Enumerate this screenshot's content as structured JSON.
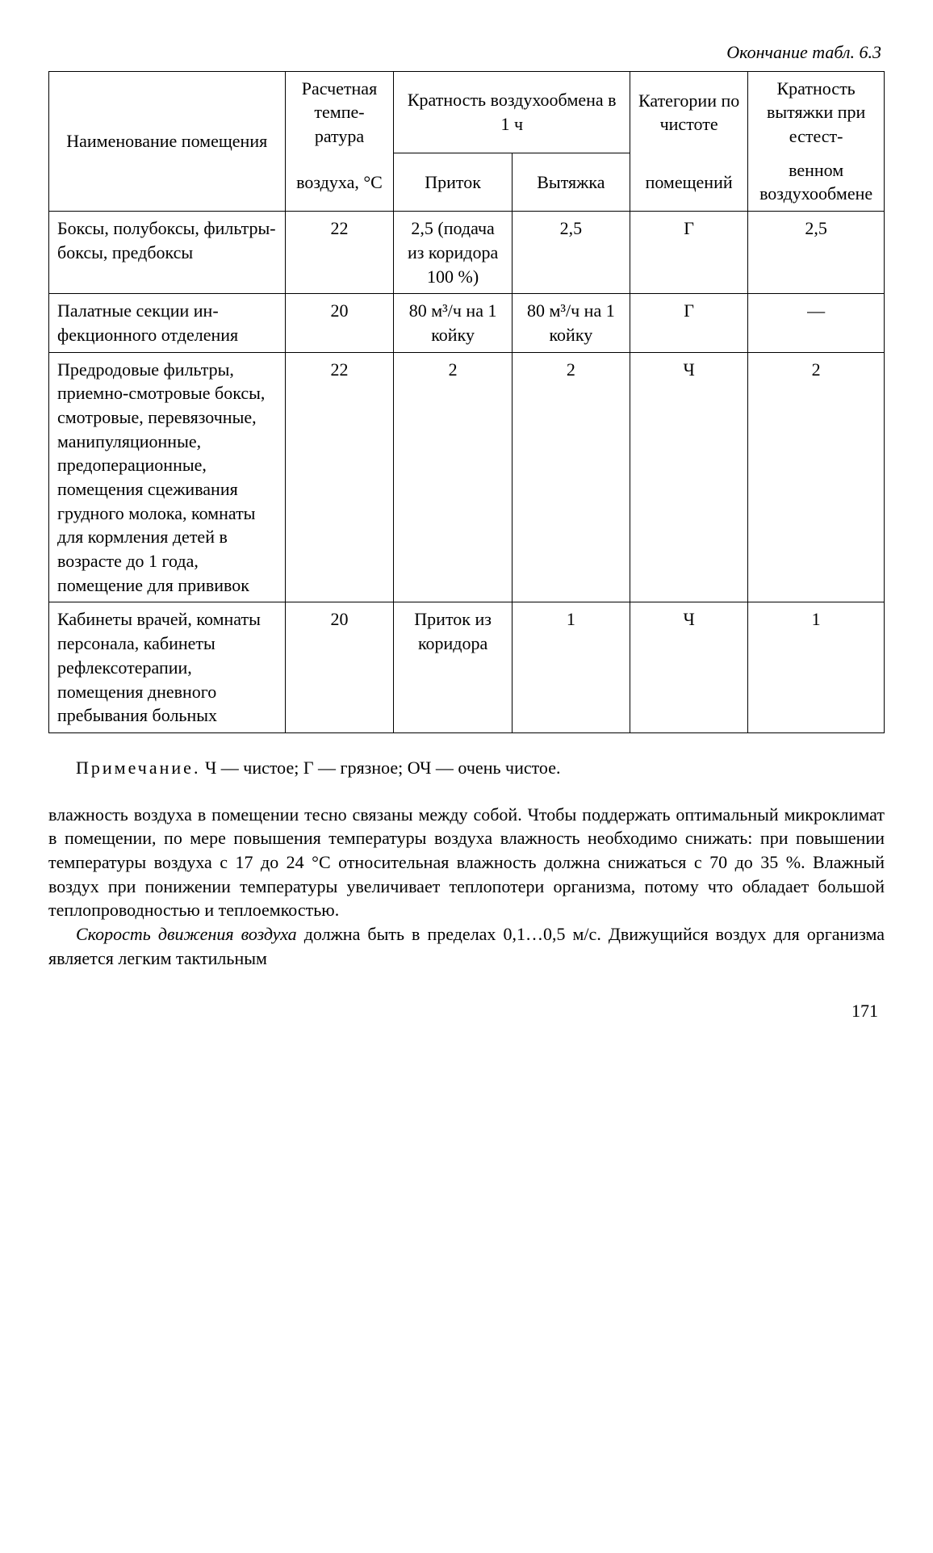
{
  "caption": "Окончание табл. 6.3",
  "head": {
    "name": "Наименование помещения",
    "temp_top": "Расчет­ная темпе­ратура",
    "temp_bottom": "воздуха, °C",
    "multi": "Кратность воздухообмена в 1 ч",
    "inflow": "Приток",
    "outflow": "Вытяжка",
    "category": "Кате­гории по чистоте",
    "category_bottom": "поме­щений",
    "natural": "Крат­ность вытяжки при естест-",
    "natural_bottom": "венном воздухо­обмене"
  },
  "rows": [
    {
      "name": "Боксы, полубоксы, фильтры-боксы, предбоксы",
      "temp": "22",
      "inflow": "2,5 (подача из кори­дора 100 %)",
      "outflow": "2,5",
      "cat": "Г",
      "nat": "2,5"
    },
    {
      "name": "Палатные секции ин­фекционного отде­ления",
      "temp": "20",
      "inflow": "80 м³/ч на 1 койку",
      "outflow": "80 м³/ч на 1 койку",
      "cat": "Г",
      "nat": "—"
    },
    {
      "name": "Предродовые фильт­ры, приемно-смот­ровые боксы, смот­ровые, перевязочные, манипуляционные, предоперационные, помещения сцежива­ния грудного молока, комнаты для кормле­ния детей в возрасте до 1 года, помещение для прививок",
      "temp": "22",
      "inflow": "2",
      "outflow": "2",
      "cat": "Ч",
      "nat": "2"
    },
    {
      "name": "Кабинеты врачей, комнаты персонала, кабинеты рефлексо­терапии, помещения дневного пребывания больных",
      "temp": "20",
      "inflow": "Приток из кори­дора",
      "outflow": "1",
      "cat": "Ч",
      "nat": "1"
    }
  ],
  "note_label": "Примечание.",
  "note_text": " Ч — чистое; Г — грязное; ОЧ — очень чистое.",
  "para1": "влажность воздуха в помещении тесно связаны между собой. Чтобы поддержать оптимальный микроклимат в помещении, по мере по­вышения температуры воздуха влажность необходимо снижать: при повышении температуры воздуха с 17 до 24 °C относительная влаж­ность должна снижаться с 70 до 35 %. Влажный воздух при пониже­нии температуры увеличивает теплопотери организма, потому что обладает большой теплопроводностью и теплоемкостью.",
  "para2_lead": "Скорость движения воздуха",
  "para2_rest": " должна быть в пределах 0,1…0,5 м/с. Движущийся воздух для организма является легким тактильным",
  "page_number": "171"
}
